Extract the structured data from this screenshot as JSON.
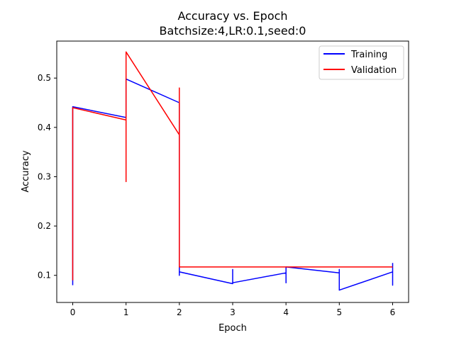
{
  "chart_data": {
    "type": "line",
    "title": "Accuracy vs. Epoch",
    "subtitle": "Batchsize:4,LR:0.1,seed:0",
    "xlabel": "Epoch",
    "ylabel": "Accuracy",
    "xlim": [
      -0.3,
      6.3
    ],
    "ylim": [
      0.045,
      0.575
    ],
    "x_ticks": [
      0,
      1,
      2,
      3,
      4,
      5,
      6
    ],
    "y_ticks": [
      0.1,
      0.2,
      0.3,
      0.4,
      0.5
    ],
    "grid": false,
    "legend_position": "top-right",
    "series": [
      {
        "name": "Training",
        "color": "#0000ff",
        "points": [
          [
            0,
            0.08
          ],
          [
            0,
            0.442
          ],
          [
            1,
            0.42
          ],
          [
            1,
            0.498
          ],
          [
            2,
            0.45
          ],
          [
            2,
            0.1
          ],
          [
            2,
            0.107
          ],
          [
            3,
            0.083
          ],
          [
            3,
            0.112
          ],
          [
            3,
            0.085
          ],
          [
            4,
            0.105
          ],
          [
            4,
            0.085
          ],
          [
            4,
            0.117
          ],
          [
            5,
            0.105
          ],
          [
            5,
            0.112
          ],
          [
            5,
            0.07
          ],
          [
            6,
            0.107
          ],
          [
            6,
            0.08
          ],
          [
            6,
            0.125
          ]
        ]
      },
      {
        "name": "Validation",
        "color": "#ff0000",
        "points": [
          [
            0,
            0.09
          ],
          [
            0,
            0.44
          ],
          [
            1,
            0.415
          ],
          [
            1,
            0.29
          ],
          [
            1,
            0.553
          ],
          [
            2,
            0.385
          ],
          [
            2,
            0.48
          ],
          [
            2,
            0.117
          ],
          [
            3,
            0.117
          ],
          [
            4,
            0.117
          ],
          [
            5,
            0.117
          ],
          [
            6,
            0.117
          ]
        ]
      }
    ]
  }
}
